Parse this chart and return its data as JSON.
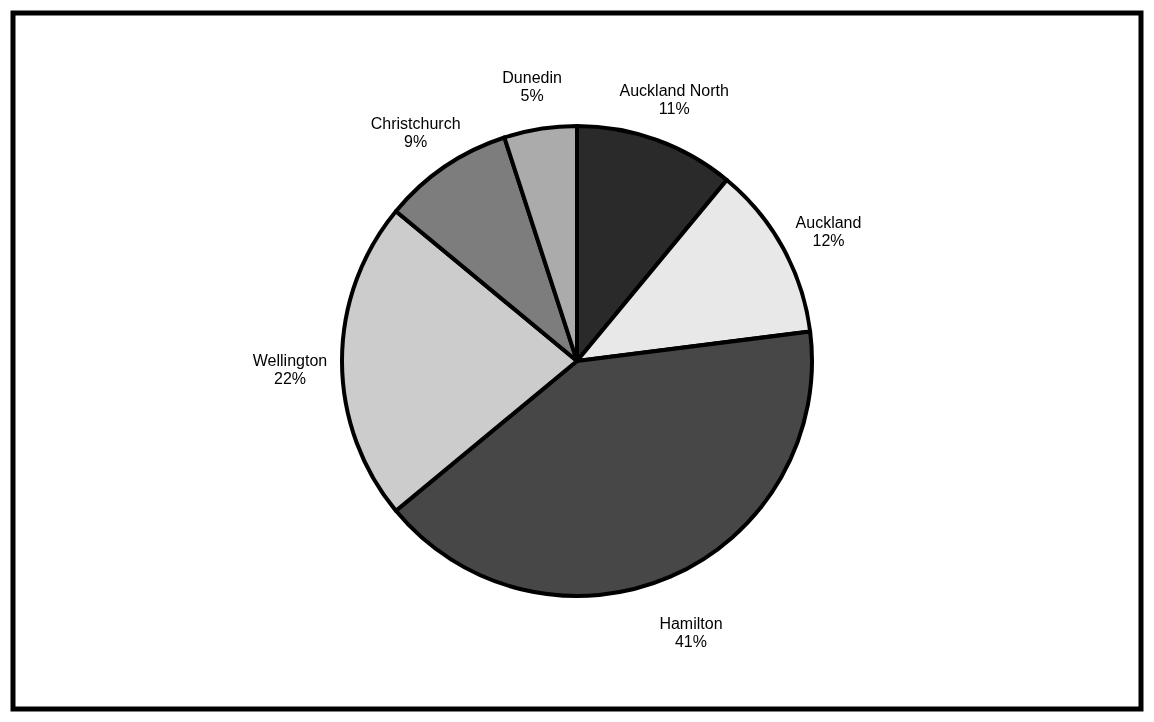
{
  "chart_data": {
    "type": "pie",
    "categories": [
      "Auckland North",
      "Auckland",
      "Hamilton",
      "Wellington",
      "Christchurch",
      "Dunedin"
    ],
    "values": [
      11,
      12,
      41,
      22,
      9,
      5
    ],
    "value_labels": [
      "11%",
      "12%",
      "41%",
      "22%",
      "9%",
      "5%"
    ],
    "colors": [
      "#2a2a2a",
      "#e8e8e8",
      "#474747",
      "#cccccc",
      "#7d7d7d",
      "#ababab"
    ]
  }
}
